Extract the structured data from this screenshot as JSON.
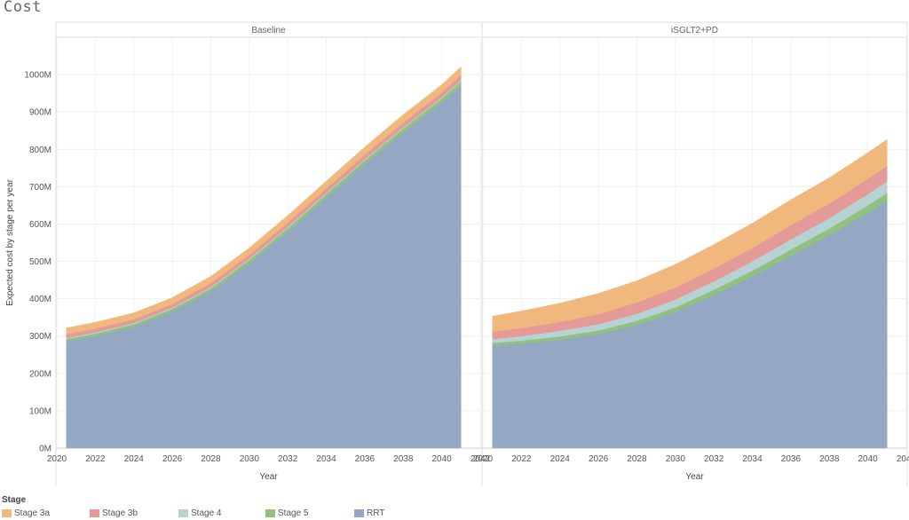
{
  "page": {
    "title": "Cost"
  },
  "chart_data": {
    "type": "area",
    "stacked": true,
    "ylabel": "Expected cost by stage per year",
    "xlabel": "Year",
    "ylim": [
      0,
      1100
    ],
    "yticks": [
      0,
      100,
      200,
      300,
      400,
      500,
      600,
      700,
      800,
      900,
      1000
    ],
    "ytick_labels": [
      "0M",
      "100M",
      "200M",
      "300M",
      "400M",
      "500M",
      "600M",
      "700M",
      "800M",
      "900M",
      "1000M"
    ],
    "xlim": [
      2020,
      2042
    ],
    "xticks": [
      2020,
      2022,
      2024,
      2026,
      2028,
      2030,
      2032,
      2034,
      2036,
      2038,
      2040,
      2042
    ],
    "xtick_labels": [
      "2020",
      "2022",
      "2024",
      "2026",
      "2028",
      "2030",
      "2032",
      "2034",
      "2036",
      "2038",
      "2040",
      "2042"
    ],
    "grid": true,
    "legend": {
      "title": "Stage",
      "position": "bottom",
      "entries": [
        "Stage 3a",
        "Stage 3b",
        "Stage 4",
        "Stage 5",
        "RRT"
      ]
    },
    "colors": {
      "Stage 3a": "#F1B87E",
      "Stage 3b": "#E49A96",
      "Stage 4": "#B7D2D3",
      "Stage 5": "#8FC17F",
      "RRT": "#94A8C3"
    },
    "panels": [
      {
        "title": "Baseline",
        "x": [
          2020.5,
          2022,
          2024,
          2026,
          2028,
          2030,
          2032,
          2034,
          2036,
          2038,
          2040,
          2041
        ],
        "series": [
          {
            "name": "RRT",
            "values": [
              285,
              300,
              325,
              365,
              420,
              495,
              580,
              670,
              760,
              845,
              925,
              970
            ]
          },
          {
            "name": "Stage 5",
            "values": [
              7,
              7,
              7,
              8,
              8,
              9,
              9,
              10,
              10,
              11,
              11,
              12
            ]
          },
          {
            "name": "Stage 4",
            "values": [
              3,
              3,
              3,
              3,
              3,
              3,
              3,
              3,
              3,
              3,
              3,
              3
            ]
          },
          {
            "name": "Stage 3b",
            "values": [
              10,
              10,
              10,
              10,
              11,
              11,
              12,
              12,
              13,
              13,
              13,
              14
            ]
          },
          {
            "name": "Stage 3a",
            "values": [
              17,
              17,
              17,
              17,
              18,
              18,
              19,
              20,
              20,
              21,
              21,
              22
            ]
          }
        ]
      },
      {
        "title": "iSGLT2+PD",
        "x": [
          2020.5,
          2022,
          2024,
          2026,
          2028,
          2030,
          2032,
          2034,
          2036,
          2038,
          2040,
          2041
        ],
        "series": [
          {
            "name": "RRT",
            "values": [
              275,
              280,
              290,
              305,
              330,
              365,
              410,
              460,
              515,
              570,
              630,
              662
            ]
          },
          {
            "name": "Stage 5",
            "values": [
              7,
              8,
              9,
              10,
              11,
              12,
              14,
              15,
              17,
              18,
              20,
              21
            ]
          },
          {
            "name": "Stage 4",
            "values": [
              10,
              12,
              15,
              17,
              19,
              21,
              23,
              25,
              27,
              28,
              30,
              31
            ]
          },
          {
            "name": "Stage 3b",
            "values": [
              20,
              22,
              24,
              27,
              30,
              32,
              34,
              36,
              38,
              39,
              41,
              42
            ]
          },
          {
            "name": "Stage 3a",
            "values": [
              41,
              45,
              50,
              55,
              58,
              62,
              64,
              66,
              68,
              69,
              70,
              70
            ]
          }
        ]
      }
    ]
  }
}
